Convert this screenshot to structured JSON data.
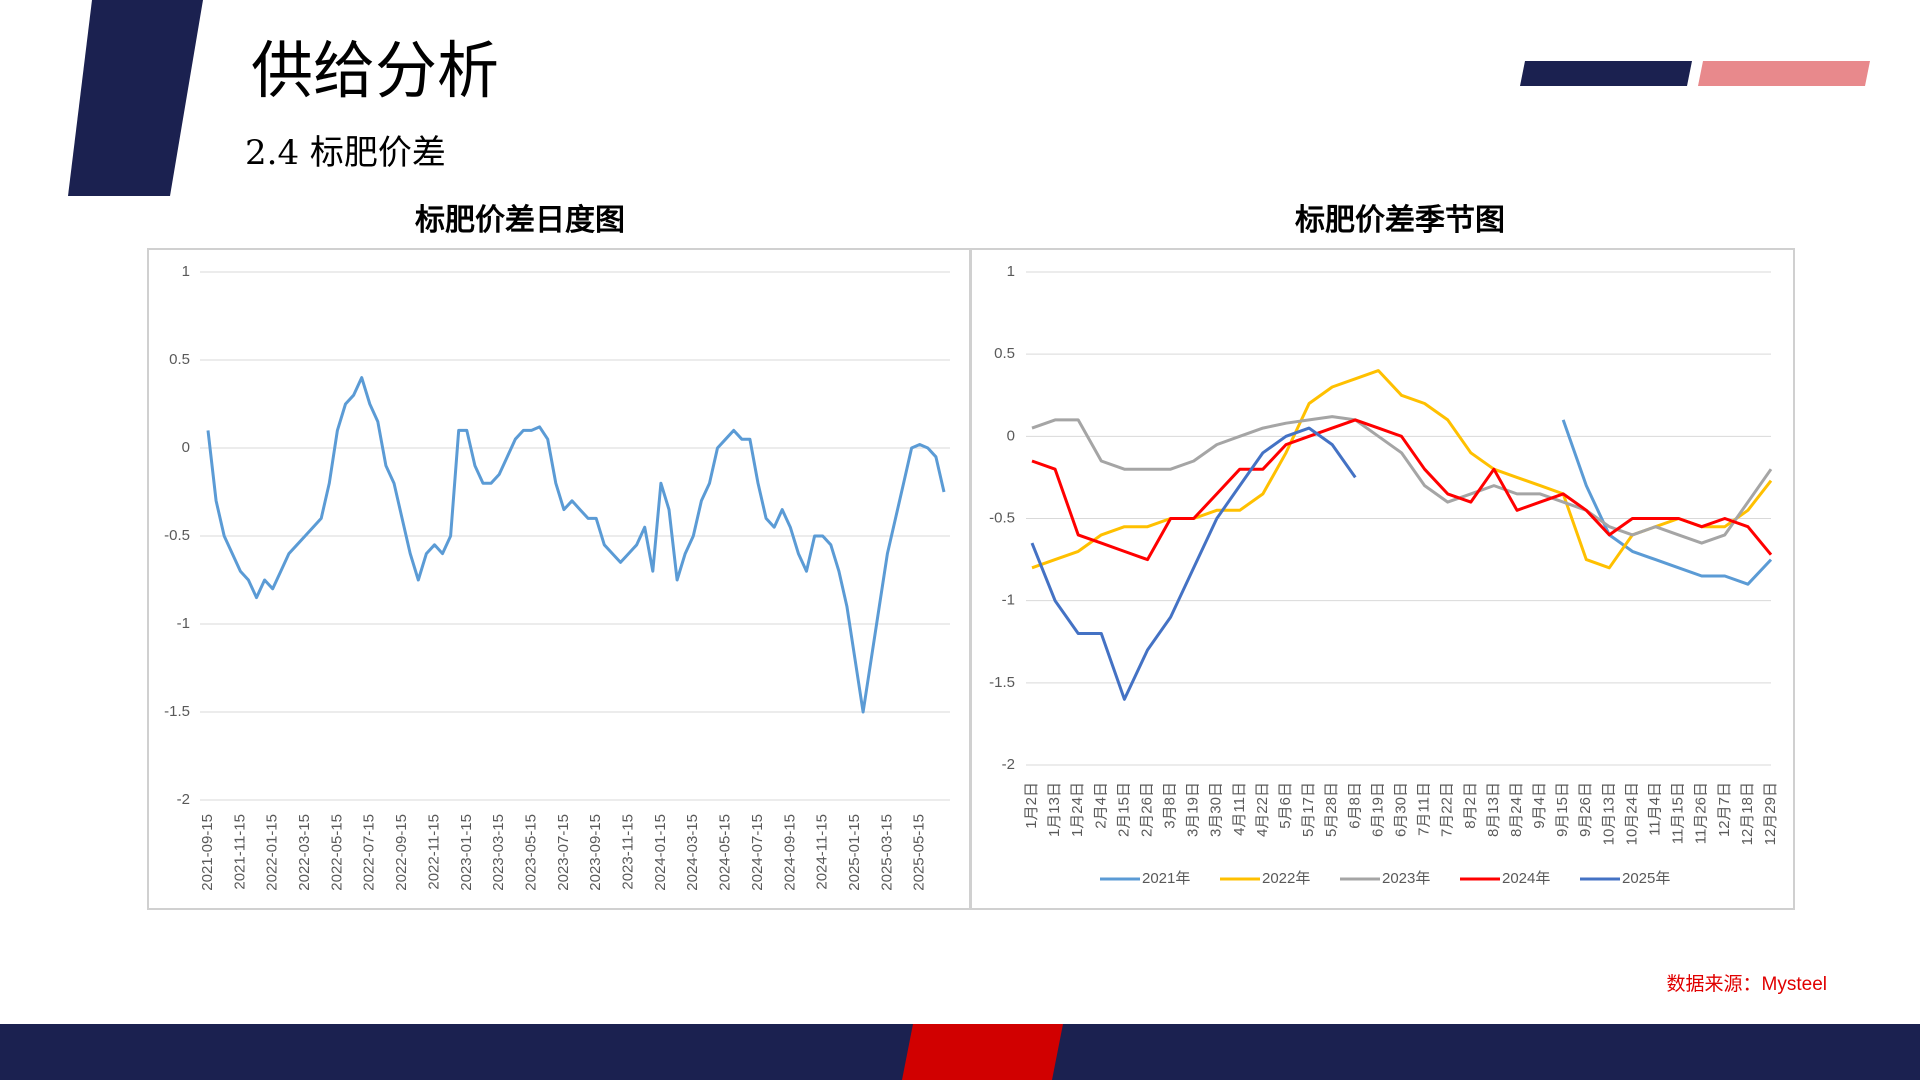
{
  "header": {
    "title": "供给分析",
    "subtitle": "2.4 标肥价差"
  },
  "source": "数据来源：Mysteel",
  "chart_data": [
    {
      "type": "line",
      "title": "标肥价差日度图",
      "color": "#5b9bd5",
      "grid": true,
      "ylim": [
        -2,
        1
      ],
      "yticks": [
        -2,
        -1.5,
        -1,
        -0.5,
        0,
        0.5,
        1
      ],
      "categories": [
        "2021-09-15",
        null,
        null,
        null,
        "2021-11-15",
        null,
        null,
        null,
        "2022-01-15",
        null,
        null,
        null,
        "2022-03-15",
        null,
        null,
        null,
        "2022-05-15",
        null,
        null,
        null,
        "2022-07-15",
        null,
        null,
        null,
        "2022-09-15",
        null,
        null,
        null,
        "2022-11-15",
        null,
        null,
        null,
        "2023-01-15",
        null,
        null,
        null,
        "2023-03-15",
        null,
        null,
        null,
        "2023-05-15",
        null,
        null,
        null,
        "2023-07-15",
        null,
        null,
        null,
        "2023-09-15",
        null,
        null,
        null,
        "2023-11-15",
        null,
        null,
        null,
        "2024-01-15",
        null,
        null,
        null,
        "2024-03-15",
        null,
        null,
        null,
        "2024-05-15",
        null,
        null,
        null,
        "2024-07-15",
        null,
        null,
        null,
        "2024-09-15",
        null,
        null,
        null,
        "2024-11-15",
        null,
        null,
        null,
        "2025-01-15",
        null,
        null,
        null,
        "2025-03-15",
        null,
        null,
        null,
        "2025-05-15",
        null,
        null,
        null
      ],
      "values": [
        0.1,
        -0.3,
        -0.5,
        -0.6,
        -0.7,
        -0.75,
        -0.85,
        -0.75,
        -0.8,
        -0.7,
        -0.6,
        -0.55,
        -0.5,
        -0.45,
        -0.4,
        -0.2,
        0.1,
        0.25,
        0.3,
        0.4,
        0.25,
        0.15,
        -0.1,
        -0.2,
        -0.4,
        -0.6,
        -0.75,
        -0.6,
        -0.55,
        -0.6,
        -0.5,
        0.1,
        0.1,
        -0.1,
        -0.2,
        -0.2,
        -0.15,
        -0.05,
        0.05,
        0.1,
        0.1,
        0.12,
        0.05,
        -0.2,
        -0.35,
        -0.3,
        -0.35,
        -0.4,
        -0.4,
        -0.55,
        -0.6,
        -0.65,
        -0.6,
        -0.55,
        -0.45,
        -0.7,
        -0.2,
        -0.35,
        -0.75,
        -0.6,
        -0.5,
        -0.3,
        -0.2,
        0.0,
        0.05,
        0.1,
        0.05,
        0.05,
        -0.2,
        -0.4,
        -0.45,
        -0.35,
        -0.45,
        -0.6,
        -0.7,
        -0.5,
        -0.5,
        -0.55,
        -0.7,
        -0.9,
        -1.2,
        -1.5,
        -1.2,
        -0.9,
        -0.6,
        -0.4,
        -0.2,
        0.0,
        0.02,
        0.0,
        -0.05,
        -0.25
      ]
    },
    {
      "type": "line",
      "title": "标肥价差季节图",
      "grid": true,
      "legend": "bottom",
      "ylim": [
        -2,
        1
      ],
      "yticks": [
        -2,
        -1.5,
        -1,
        -0.5,
        0,
        0.5,
        1
      ],
      "categories": [
        "1月2日",
        "1月13日",
        "1月24日",
        "2月4日",
        "2月15日",
        "2月26日",
        "3月8日",
        "3月19日",
        "3月30日",
        "4月11日",
        "4月22日",
        "5月6日",
        "5月17日",
        "5月28日",
        "6月8日",
        "6月19日",
        "6月30日",
        "7月11日",
        "7月22日",
        "8月2日",
        "8月13日",
        "8月24日",
        "9月4日",
        "9月15日",
        "9月26日",
        "10月13日",
        "10月24日",
        "11月4日",
        "11月15日",
        "11月26日",
        "12月7日",
        "12月18日",
        "12月29日"
      ],
      "series": [
        {
          "name": "2021年",
          "color": "#5b9bd5",
          "values": [
            null,
            null,
            null,
            null,
            null,
            null,
            null,
            null,
            null,
            null,
            null,
            null,
            null,
            null,
            null,
            null,
            null,
            null,
            null,
            null,
            null,
            null,
            null,
            0.1,
            -0.3,
            -0.6,
            -0.7,
            -0.75,
            -0.8,
            -0.85,
            -0.85,
            -0.9,
            -0.75
          ]
        },
        {
          "name": "2022年",
          "color": "#ffc000",
          "values": [
            -0.8,
            -0.75,
            -0.7,
            -0.6,
            -0.55,
            -0.55,
            -0.5,
            -0.5,
            -0.45,
            -0.45,
            -0.35,
            -0.1,
            0.2,
            0.3,
            0.35,
            0.4,
            0.25,
            0.2,
            0.1,
            -0.1,
            -0.2,
            -0.25,
            -0.3,
            -0.35,
            -0.75,
            -0.8,
            -0.6,
            -0.55,
            -0.5,
            -0.55,
            -0.55,
            -0.45,
            -0.27
          ]
        },
        {
          "name": "2023年",
          "color": "#a5a5a5",
          "values": [
            0.05,
            0.1,
            0.1,
            -0.15,
            -0.2,
            -0.2,
            -0.2,
            -0.15,
            -0.05,
            0.0,
            0.05,
            0.08,
            0.1,
            0.12,
            0.1,
            0.0,
            -0.1,
            -0.3,
            -0.4,
            -0.35,
            -0.3,
            -0.35,
            -0.35,
            -0.4,
            -0.45,
            -0.55,
            -0.6,
            -0.55,
            -0.6,
            -0.65,
            -0.6,
            -0.4,
            -0.2
          ]
        },
        {
          "name": "2024年",
          "color": "#ff0000",
          "values": [
            -0.15,
            -0.2,
            -0.6,
            -0.65,
            -0.7,
            -0.75,
            -0.5,
            -0.5,
            -0.35,
            -0.2,
            -0.2,
            -0.05,
            0.0,
            0.05,
            0.1,
            0.05,
            0.0,
            -0.2,
            -0.35,
            -0.4,
            -0.2,
            -0.45,
            -0.4,
            -0.35,
            -0.45,
            -0.6,
            -0.5,
            -0.5,
            -0.5,
            -0.55,
            -0.5,
            -0.55,
            -0.72
          ]
        },
        {
          "name": "2025年",
          "color": "#4472c4",
          "values": [
            -0.65,
            -1.0,
            -1.2,
            -1.2,
            -1.6,
            -1.3,
            -1.1,
            -0.8,
            -0.5,
            -0.3,
            -0.1,
            0.0,
            0.05,
            -0.05,
            -0.25,
            null,
            null,
            null,
            null,
            null,
            null,
            null,
            null,
            null,
            null,
            null,
            null,
            null,
            null,
            null,
            null,
            null,
            null
          ]
        }
      ]
    }
  ]
}
